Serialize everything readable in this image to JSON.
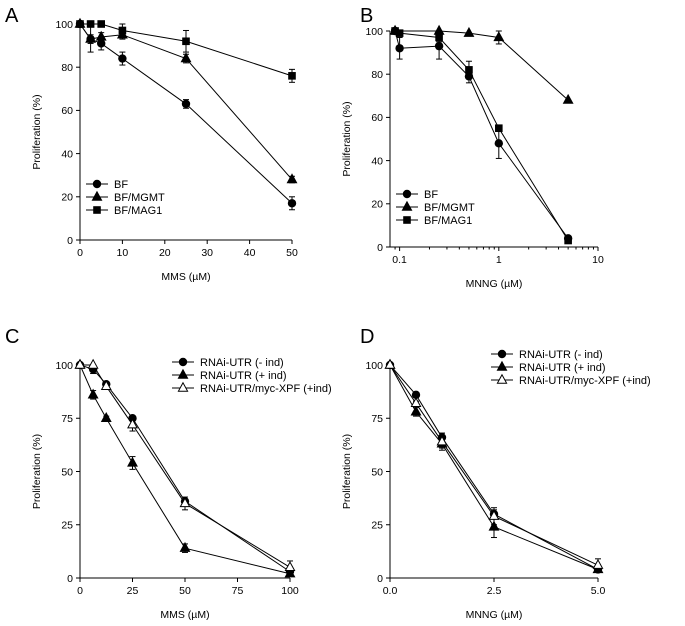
{
  "chart_data": [
    {
      "panel": "A",
      "type": "line",
      "xscale": "linear",
      "xlabel": "MMS (µM)",
      "ylabel": "Proliferation (%)",
      "xlim": [
        0,
        50
      ],
      "ylim": [
        0,
        100
      ],
      "xticks": [
        0,
        10,
        20,
        30,
        40,
        50
      ],
      "xtick_labels": [
        "0",
        "10",
        "20",
        "30",
        "40",
        "50"
      ],
      "yticks": [
        0,
        20,
        40,
        60,
        80,
        100
      ],
      "ytick_labels": [
        "0",
        "20",
        "40",
        "60",
        "80",
        "100"
      ],
      "legend_position": "bottom-left",
      "series": [
        {
          "name": "BF",
          "marker": "circle",
          "x": [
            0,
            2.5,
            5,
            10,
            25,
            50
          ],
          "y": [
            100,
            93,
            91,
            84,
            63,
            17
          ],
          "err": [
            0,
            6,
            3,
            3,
            2,
            3
          ]
        },
        {
          "name": "BF/MGMT",
          "marker": "triangle",
          "x": [
            0,
            2.5,
            5,
            10,
            25,
            50
          ],
          "y": [
            100,
            93,
            94,
            95,
            84,
            28
          ],
          "err": [
            0,
            2,
            2,
            2,
            2,
            1.5
          ]
        },
        {
          "name": "BF/MAG1",
          "marker": "square",
          "x": [
            0,
            2.5,
            5,
            10,
            25,
            50
          ],
          "y": [
            100,
            100,
            100,
            97,
            92,
            76
          ],
          "err": [
            0,
            0,
            0,
            3,
            5,
            3
          ]
        }
      ]
    },
    {
      "panel": "B",
      "type": "line",
      "xscale": "log",
      "xlabel": "MNNG (µM)",
      "ylabel": "Proliferation (%)",
      "xlim": [
        0.08,
        10
      ],
      "ylim": [
        0,
        100
      ],
      "xticks": [
        0.1,
        1,
        10
      ],
      "xtick_labels": [
        "0.1",
        "1",
        "10"
      ],
      "yticks": [
        0,
        20,
        40,
        60,
        80,
        100
      ],
      "ytick_labels": [
        "0",
        "20",
        "40",
        "60",
        "80",
        "100"
      ],
      "legend_position": "bottom-left",
      "series": [
        {
          "name": "BF",
          "marker": "circle",
          "x": [
            0.09,
            0.1,
            0.25,
            0.5,
            1,
            5
          ],
          "y": [
            100,
            92,
            93,
            79,
            48,
            4
          ],
          "err": [
            0,
            5,
            6,
            3,
            7,
            1
          ]
        },
        {
          "name": "BF/MGMT",
          "marker": "triangle",
          "x": [
            0.09,
            0.25,
            0.5,
            1,
            5
          ],
          "y": [
            100,
            100,
            99,
            97,
            68
          ],
          "err": [
            0,
            0,
            0,
            3,
            0
          ]
        },
        {
          "name": "BF/MAG1",
          "marker": "square",
          "x": [
            0.09,
            0.1,
            0.25,
            0.5,
            1,
            5
          ],
          "y": [
            100,
            99,
            97,
            82,
            55,
            3
          ],
          "err": [
            0,
            0,
            2,
            4,
            0,
            1
          ]
        }
      ]
    },
    {
      "panel": "C",
      "type": "line",
      "xscale": "linear",
      "xlabel": "MMS (µM)",
      "ylabel": "Proliferation (%)",
      "xlim": [
        0,
        100
      ],
      "ylim": [
        0,
        100
      ],
      "xticks": [
        0,
        25,
        50,
        75,
        100
      ],
      "xtick_labels": [
        "0",
        "25",
        "50",
        "75",
        "100"
      ],
      "yticks": [
        0,
        25,
        50,
        75,
        100
      ],
      "ytick_labels": [
        "0",
        "25",
        "50",
        "75",
        "100"
      ],
      "legend_position": "top-right",
      "series": [
        {
          "name": "RNAi-UTR (- ind)",
          "marker": "circle",
          "x": [
            0,
            6.25,
            12.5,
            25,
            50,
            100
          ],
          "y": [
            100,
            98,
            91,
            75,
            36,
            3
          ],
          "err": [
            0,
            2,
            1,
            1,
            1,
            2
          ]
        },
        {
          "name": "RNAi-UTR (+ ind)",
          "marker": "triangle",
          "x": [
            0,
            6.25,
            12.5,
            25,
            50,
            100
          ],
          "y": [
            100,
            86,
            75,
            54,
            14,
            2
          ],
          "err": [
            0,
            2,
            1,
            3,
            2,
            1
          ]
        },
        {
          "name": "RNAi-UTR/myc-XPF (+ind)",
          "marker": "open-triangle",
          "x": [
            0,
            6.25,
            12.5,
            25,
            50,
            100
          ],
          "y": [
            100,
            100,
            90,
            72,
            35,
            5
          ],
          "err": [
            0,
            0,
            1,
            3,
            3,
            3
          ]
        }
      ]
    },
    {
      "panel": "D",
      "type": "line",
      "xscale": "linear",
      "xlabel": "MNNG (µM)",
      "ylabel": "Proliferation (%)",
      "xlim": [
        0,
        5
      ],
      "ylim": [
        0,
        100
      ],
      "xticks": [
        0,
        2.5,
        5
      ],
      "xtick_labels": [
        "0.0",
        "2.5",
        "5.0"
      ],
      "yticks": [
        0,
        25,
        50,
        75,
        100
      ],
      "ytick_labels": [
        "0",
        "25",
        "50",
        "75",
        "100"
      ],
      "legend_position": "top-right",
      "series": [
        {
          "name": "RNAi-UTR (- ind)",
          "marker": "circle",
          "x": [
            0,
            0.625,
            1.25,
            2.5,
            5
          ],
          "y": [
            100,
            86,
            66,
            30,
            4
          ],
          "err": [
            0,
            1,
            2,
            2,
            1
          ]
        },
        {
          "name": "RNAi-UTR (+ ind)",
          "marker": "triangle",
          "x": [
            0,
            0.625,
            1.25,
            2.5,
            5
          ],
          "y": [
            100,
            78,
            63,
            24,
            4
          ],
          "err": [
            0,
            2,
            2,
            5,
            1
          ]
        },
        {
          "name": "RNAi-UTR/myc-XPF (+ind)",
          "marker": "open-triangle",
          "x": [
            0,
            0.625,
            1.25,
            2.5,
            5
          ],
          "y": [
            100,
            82,
            64,
            29,
            6
          ],
          "err": [
            0,
            1,
            4,
            4,
            3
          ]
        }
      ]
    }
  ]
}
